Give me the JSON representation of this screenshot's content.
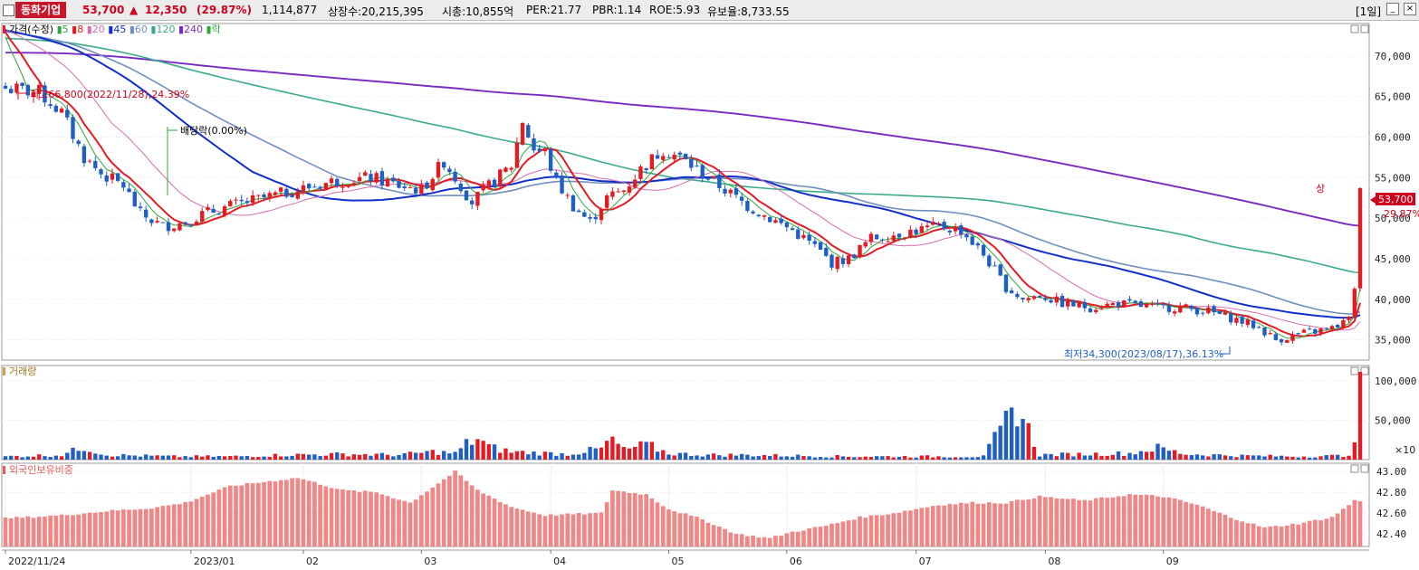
{
  "header": {
    "name": "동화기업",
    "price": "53,700",
    "arrow": "▲",
    "change": "12,350",
    "change_pct": "(29.87%)",
    "volume": "1,114,877",
    "listed": "상장수:20,215,395",
    "mcap": "시총:10,855억",
    "per": "PER:21.77",
    "pbr": "PBR:1.14",
    "roe": "ROE:5.93",
    "reserve": "유보율:8,733.55",
    "period": "[1일]"
  },
  "colors": {
    "up": "#e31b23",
    "down": "#1e5fc6",
    "ma5": "#2fa83a",
    "ma8": "#e31b23",
    "ma20": "#d86db0",
    "ma45": "#1230c8",
    "ma60": "#6f8fbf",
    "ma120": "#3aab8a",
    "ma240": "#7a2bbf",
    "foreign": "#f08686"
  },
  "price_legend": [
    {
      "label": "가격(수정)",
      "color": "#e31b23"
    },
    {
      "label": "5",
      "color": "#2fa83a"
    },
    {
      "label": "8",
      "color": "#e31b23"
    },
    {
      "label": "20",
      "color": "#d86db0"
    },
    {
      "label": "45",
      "color": "#1230c8"
    },
    {
      "label": "60",
      "color": "#6f8fbf"
    },
    {
      "label": "120",
      "color": "#3aab8a"
    },
    {
      "label": "240",
      "color": "#7a2bbf"
    },
    {
      "label": "락",
      "color": "#2fa83a"
    }
  ],
  "volume_legend": "거래량",
  "foreign_legend": "외국인보유비중",
  "annotations": {
    "high": "최고66,800(2022/11/28),24.39%",
    "low": "최저34,300(2023/08/17),36.13%",
    "dividend": "배당락(0.00%)",
    "upper": "상",
    "last_price": "53,700",
    "last_pct": "29.87%",
    "vol_unit": "×10"
  },
  "chart_data": {
    "type": "candlestick",
    "x_labels": [
      "2022/11/24",
      "2023/01",
      "02",
      "03",
      "04",
      "05",
      "06",
      "07",
      "08",
      "09"
    ],
    "price_axis": {
      "ticks": [
        "70,000",
        "65,000",
        "60,000",
        "55,000",
        "50,000",
        "45,000",
        "40,000",
        "35,000"
      ],
      "range": [
        32500,
        74000
      ]
    },
    "volume_axis": {
      "ticks": [
        "100,000",
        "50,000"
      ],
      "range": [
        0,
        115000
      ],
      "unit": "×10"
    },
    "foreign_axis": {
      "ticks": [
        "43.00",
        "42.80",
        "42.60",
        "42.40"
      ],
      "range": [
        42.28,
        43.08
      ]
    },
    "price_keypoints": [
      [
        0,
        66000
      ],
      [
        6,
        65500
      ],
      [
        10,
        63000
      ],
      [
        14,
        57500
      ],
      [
        17,
        55500
      ],
      [
        21,
        54000
      ],
      [
        24,
        50500
      ],
      [
        28,
        49000
      ],
      [
        32,
        49500
      ],
      [
        35,
        50500
      ],
      [
        40,
        51500
      ],
      [
        46,
        52500
      ],
      [
        52,
        53500
      ],
      [
        58,
        54500
      ],
      [
        65,
        55000
      ],
      [
        70,
        54000
      ],
      [
        74,
        53500
      ],
      [
        78,
        57000
      ],
      [
        80,
        55000
      ],
      [
        83,
        52000
      ],
      [
        86,
        54000
      ],
      [
        90,
        56500
      ],
      [
        92,
        62000
      ],
      [
        94,
        58500
      ],
      [
        96,
        58000
      ],
      [
        98,
        54500
      ],
      [
        101,
        51500
      ],
      [
        104,
        49500
      ],
      [
        107,
        52500
      ],
      [
        110,
        53500
      ],
      [
        113,
        56000
      ],
      [
        117,
        58500
      ],
      [
        120,
        57500
      ],
      [
        124,
        55500
      ],
      [
        128,
        53500
      ],
      [
        132,
        51500
      ],
      [
        136,
        50000
      ],
      [
        140,
        48500
      ],
      [
        144,
        46500
      ],
      [
        147,
        44500
      ],
      [
        150,
        45000
      ],
      [
        154,
        47500
      ],
      [
        158,
        48000
      ],
      [
        162,
        48500
      ],
      [
        166,
        49000
      ],
      [
        170,
        48500
      ],
      [
        174,
        45500
      ],
      [
        178,
        41500
      ],
      [
        181,
        40000
      ],
      [
        184,
        40500
      ],
      [
        188,
        39500
      ],
      [
        193,
        39000
      ],
      [
        198,
        39500
      ],
      [
        204,
        39000
      ],
      [
        209,
        39000
      ],
      [
        214,
        38500
      ],
      [
        219,
        37500
      ],
      [
        223,
        36500
      ],
      [
        226,
        35000
      ],
      [
        231,
        35800
      ],
      [
        236,
        36400
      ],
      [
        239,
        37500
      ],
      [
        240,
        41300
      ],
      [
        241,
        53700
      ]
    ],
    "volume_keypoints": [
      [
        0,
        4000
      ],
      [
        10,
        6000
      ],
      [
        14,
        16000
      ],
      [
        18,
        6000
      ],
      [
        24,
        5000
      ],
      [
        30,
        4000
      ],
      [
        40,
        4000
      ],
      [
        50,
        6000
      ],
      [
        60,
        7000
      ],
      [
        70,
        6000
      ],
      [
        76,
        10000
      ],
      [
        80,
        8000
      ],
      [
        82,
        20000
      ],
      [
        84,
        27000
      ],
      [
        86,
        16000
      ],
      [
        90,
        10000
      ],
      [
        100,
        7000
      ],
      [
        106,
        14000
      ],
      [
        108,
        26000
      ],
      [
        110,
        12000
      ],
      [
        114,
        19000
      ],
      [
        118,
        8000
      ],
      [
        124,
        6000
      ],
      [
        130,
        6000
      ],
      [
        140,
        5000
      ],
      [
        150,
        4000
      ],
      [
        165,
        4000
      ],
      [
        174,
        4000
      ],
      [
        180,
        68000
      ],
      [
        184,
        6000
      ],
      [
        200,
        8000
      ],
      [
        205,
        15000
      ],
      [
        210,
        7000
      ],
      [
        220,
        5000
      ],
      [
        230,
        4000
      ],
      [
        238,
        5000
      ],
      [
        239,
        8000
      ],
      [
        240,
        22000
      ],
      [
        241,
        111487
      ]
    ],
    "foreign_keypoints": [
      [
        0,
        42.55
      ],
      [
        10,
        42.58
      ],
      [
        18,
        42.62
      ],
      [
        26,
        42.65
      ],
      [
        32,
        42.7
      ],
      [
        40,
        42.86
      ],
      [
        46,
        42.9
      ],
      [
        52,
        42.94
      ],
      [
        56,
        42.88
      ],
      [
        60,
        42.82
      ],
      [
        66,
        42.8
      ],
      [
        72,
        42.7
      ],
      [
        80,
        43.0
      ],
      [
        84,
        42.82
      ],
      [
        90,
        42.66
      ],
      [
        96,
        42.58
      ],
      [
        106,
        42.6
      ],
      [
        108,
        42.82
      ],
      [
        114,
        42.78
      ],
      [
        118,
        42.64
      ],
      [
        124,
        42.54
      ],
      [
        130,
        42.4
      ],
      [
        136,
        42.36
      ],
      [
        140,
        42.42
      ],
      [
        146,
        42.48
      ],
      [
        152,
        42.56
      ],
      [
        158,
        42.6
      ],
      [
        166,
        42.68
      ],
      [
        172,
        42.7
      ],
      [
        178,
        42.7
      ],
      [
        184,
        42.76
      ],
      [
        192,
        42.72
      ],
      [
        200,
        42.78
      ],
      [
        206,
        42.76
      ],
      [
        212,
        42.68
      ],
      [
        218,
        42.56
      ],
      [
        224,
        42.46
      ],
      [
        230,
        42.5
      ],
      [
        236,
        42.56
      ],
      [
        240,
        42.72
      ],
      [
        241,
        42.72
      ]
    ],
    "n_bars": 242
  }
}
